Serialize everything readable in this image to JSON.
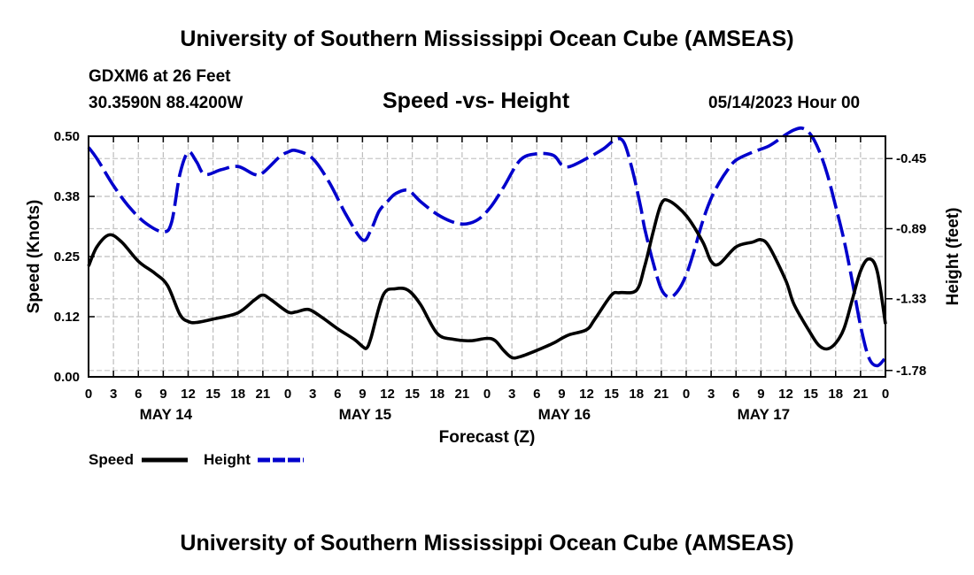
{
  "header": {
    "title": "University of Southern Mississippi Ocean Cube (AMSEAS)",
    "station": "GDXM6 at 26 Feet",
    "location": "30.3590N  88.4200W",
    "subtitle": "Speed -vs- Height",
    "date": "05/14/2023 Hour 00"
  },
  "footer": {
    "title": "University of Southern Mississippi Ocean Cube (AMSEAS)"
  },
  "chart_data": {
    "type": "line",
    "xlabel": "Forecast (Z)",
    "ylabel": "Speed (Knots)",
    "y2label": "Height (feet)",
    "x_range_hours": [
      0,
      96
    ],
    "x_tick_labels": [
      "0",
      "3",
      "6",
      "9",
      "12",
      "15",
      "18",
      "21",
      "0",
      "3",
      "6",
      "9",
      "12",
      "15",
      "18",
      "21",
      "0",
      "3",
      "6",
      "9",
      "12",
      "15",
      "18",
      "21",
      "0",
      "3",
      "6",
      "9",
      "12",
      "15",
      "18",
      "21",
      "0"
    ],
    "date_labels": [
      {
        "label": "MAY 14",
        "hour": 9
      },
      {
        "label": "MAY 15",
        "hour": 33
      },
      {
        "label": "MAY 16",
        "hour": 57
      },
      {
        "label": "MAY 17",
        "hour": 81
      }
    ],
    "ylim": [
      0,
      0.5
    ],
    "y_ticks": [
      "0.00",
      "0.12",
      "0.25",
      "0.38",
      "0.50"
    ],
    "y2lim": [
      -1.82,
      -0.31
    ],
    "y2_ticks": [
      "-0.45",
      "-0.89",
      "-1.33",
      "-1.78"
    ],
    "grid": true,
    "series": [
      {
        "name": "Speed",
        "axis": "left",
        "color": "#000000",
        "style": "solid",
        "points": [
          [
            0,
            0.23
          ],
          [
            1,
            0.27
          ],
          [
            2.5,
            0.295
          ],
          [
            4,
            0.28
          ],
          [
            6,
            0.24
          ],
          [
            8,
            0.215
          ],
          [
            9.5,
            0.19
          ],
          [
            11,
            0.13
          ],
          [
            12,
            0.115
          ],
          [
            13,
            0.113
          ],
          [
            15,
            0.12
          ],
          [
            18,
            0.133
          ],
          [
            20,
            0.16
          ],
          [
            21,
            0.17
          ],
          [
            22,
            0.16
          ],
          [
            24,
            0.135
          ],
          [
            25,
            0.135
          ],
          [
            26.5,
            0.14
          ],
          [
            28,
            0.125
          ],
          [
            30,
            0.1
          ],
          [
            32,
            0.078
          ],
          [
            33,
            0.063
          ],
          [
            33.5,
            0.06
          ],
          [
            34,
            0.08
          ],
          [
            35.5,
            0.17
          ],
          [
            37,
            0.183
          ],
          [
            38.5,
            0.18
          ],
          [
            40,
            0.15
          ],
          [
            42,
            0.09
          ],
          [
            44,
            0.078
          ],
          [
            46,
            0.075
          ],
          [
            48,
            0.08
          ],
          [
            49,
            0.075
          ],
          [
            50,
            0.055
          ],
          [
            51,
            0.04
          ],
          [
            52,
            0.042
          ],
          [
            54,
            0.055
          ],
          [
            56,
            0.07
          ],
          [
            57,
            0.08
          ],
          [
            58,
            0.088
          ],
          [
            60,
            0.098
          ],
          [
            61,
            0.12
          ],
          [
            63,
            0.17
          ],
          [
            64,
            0.175
          ],
          [
            66,
            0.18
          ],
          [
            67,
            0.23
          ],
          [
            68,
            0.3
          ],
          [
            69,
            0.36
          ],
          [
            70,
            0.365
          ],
          [
            72,
            0.335
          ],
          [
            74,
            0.28
          ],
          [
            75,
            0.24
          ],
          [
            76,
            0.235
          ],
          [
            78,
            0.27
          ],
          [
            80,
            0.28
          ],
          [
            81,
            0.285
          ],
          [
            82,
            0.27
          ],
          [
            84,
            0.2
          ],
          [
            85,
            0.15
          ],
          [
            87,
            0.09
          ],
          [
            88,
            0.065
          ],
          [
            89,
            0.058
          ],
          [
            90,
            0.07
          ],
          [
            91,
            0.1
          ],
          [
            92,
            0.16
          ],
          [
            93,
            0.22
          ],
          [
            94,
            0.245
          ],
          [
            95,
            0.22
          ],
          [
            96,
            0.11
          ]
        ]
      },
      {
        "name": "Height",
        "axis": "right",
        "color": "#0000cc",
        "style": "dashed",
        "points": [
          [
            0,
            -0.38
          ],
          [
            1,
            -0.45
          ],
          [
            3,
            -0.62
          ],
          [
            5,
            -0.76
          ],
          [
            7,
            -0.86
          ],
          [
            9,
            -0.91
          ],
          [
            10,
            -0.85
          ],
          [
            11,
            -0.55
          ],
          [
            12,
            -0.41
          ],
          [
            13,
            -0.47
          ],
          [
            14,
            -0.55
          ],
          [
            16,
            -0.52
          ],
          [
            18,
            -0.5
          ],
          [
            20,
            -0.55
          ],
          [
            21,
            -0.54
          ],
          [
            23,
            -0.44
          ],
          [
            24,
            -0.41
          ],
          [
            25,
            -0.4
          ],
          [
            27,
            -0.45
          ],
          [
            29,
            -0.6
          ],
          [
            31,
            -0.8
          ],
          [
            33,
            -0.96
          ],
          [
            34,
            -0.9
          ],
          [
            35,
            -0.78
          ],
          [
            36,
            -0.72
          ],
          [
            37,
            -0.67
          ],
          [
            38.5,
            -0.65
          ],
          [
            40,
            -0.72
          ],
          [
            42,
            -0.8
          ],
          [
            44,
            -0.85
          ],
          [
            45.5,
            -0.86
          ],
          [
            47,
            -0.83
          ],
          [
            48.5,
            -0.75
          ],
          [
            50,
            -0.63
          ],
          [
            52,
            -0.46
          ],
          [
            54,
            -0.42
          ],
          [
            56,
            -0.43
          ],
          [
            57,
            -0.49
          ],
          [
            58,
            -0.5
          ],
          [
            60,
            -0.45
          ],
          [
            62,
            -0.39
          ],
          [
            63.5,
            -0.33
          ],
          [
            64.5,
            -0.35
          ],
          [
            65.5,
            -0.52
          ],
          [
            66.5,
            -0.75
          ],
          [
            67,
            -0.89
          ],
          [
            68,
            -1.1
          ],
          [
            69,
            -1.27
          ],
          [
            70,
            -1.32
          ],
          [
            71,
            -1.28
          ],
          [
            72,
            -1.18
          ],
          [
            73,
            -1.02
          ],
          [
            74,
            -0.84
          ],
          [
            75,
            -0.7
          ],
          [
            76,
            -0.6
          ],
          [
            77,
            -0.52
          ],
          [
            78,
            -0.46
          ],
          [
            80,
            -0.41
          ],
          [
            82,
            -0.37
          ],
          [
            84,
            -0.3
          ],
          [
            85,
            -0.27
          ],
          [
            86,
            -0.26
          ],
          [
            87,
            -0.3
          ],
          [
            88,
            -0.4
          ],
          [
            89,
            -0.55
          ],
          [
            90,
            -0.75
          ],
          [
            91,
            -0.96
          ],
          [
            92,
            -1.22
          ],
          [
            93,
            -1.5
          ],
          [
            94,
            -1.7
          ],
          [
            95,
            -1.75
          ],
          [
            96,
            -1.7
          ]
        ]
      }
    ],
    "legend": [
      {
        "label": "Speed",
        "color": "#000000",
        "style": "solid"
      },
      {
        "label": "Height",
        "color": "#0000cc",
        "style": "dashed"
      }
    ]
  }
}
